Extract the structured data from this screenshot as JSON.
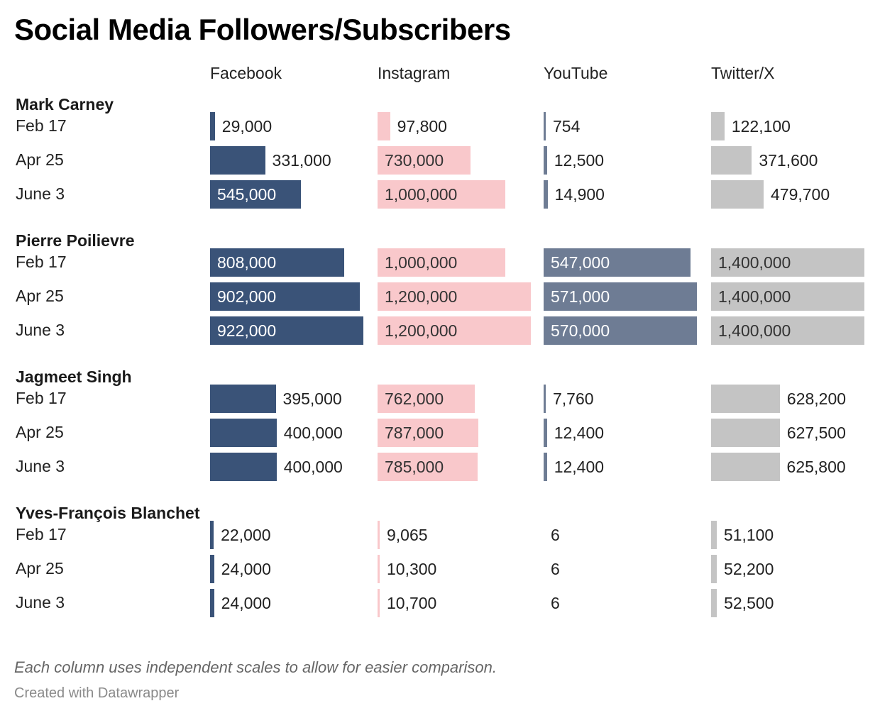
{
  "title": "Social Media Followers/Subscribers",
  "note": "Each column uses independent scales to allow for easier comparison.",
  "credit": "Created with Datawrapper",
  "chart_data": {
    "type": "bar",
    "title": "Social Media Followers/Subscribers",
    "columns": [
      {
        "name": "Facebook",
        "color": "#3a5378",
        "label_color_inside": "#ffffff",
        "max": 922000
      },
      {
        "name": "Instagram",
        "color": "#f9c8cb",
        "label_color_inside": "#333333",
        "max": 1200000
      },
      {
        "name": "YouTube",
        "color": "#6e7c94",
        "label_color_inside": "#ffffff",
        "max": 571000
      },
      {
        "name": "Twitter/X",
        "color": "#c4c4c4",
        "label_color_inside": "#333333",
        "max": 1400000
      }
    ],
    "groups": [
      {
        "name": "Mark Carney",
        "rows": [
          {
            "label": "Feb 17",
            "values": [
              29000,
              97800,
              754,
              122100
            ],
            "labels": [
              "29,000",
              "97,800",
              "754",
              "122,100"
            ]
          },
          {
            "label": "Apr 25",
            "values": [
              331000,
              730000,
              12500,
              371600
            ],
            "labels": [
              "331,000",
              "730,000",
              "12,500",
              "371,600"
            ]
          },
          {
            "label": "June 3",
            "values": [
              545000,
              1000000,
              14900,
              479700
            ],
            "labels": [
              "545,000",
              "1,000,000",
              "14,900",
              "479,700"
            ]
          }
        ]
      },
      {
        "name": "Pierre Poilievre",
        "rows": [
          {
            "label": "Feb 17",
            "values": [
              808000,
              1000000,
              547000,
              1400000
            ],
            "labels": [
              "808,000",
              "1,000,000",
              "547,000",
              "1,400,000"
            ]
          },
          {
            "label": "Apr 25",
            "values": [
              902000,
              1200000,
              571000,
              1400000
            ],
            "labels": [
              "902,000",
              "1,200,000",
              "571,000",
              "1,400,000"
            ]
          },
          {
            "label": "June 3",
            "values": [
              922000,
              1200000,
              570000,
              1400000
            ],
            "labels": [
              "922,000",
              "1,200,000",
              "570,000",
              "1,400,000"
            ]
          }
        ]
      },
      {
        "name": "Jagmeet Singh",
        "rows": [
          {
            "label": "Feb 17",
            "values": [
              395000,
              762000,
              7760,
              628200
            ],
            "labels": [
              "395,000",
              "762,000",
              "7,760",
              "628,200"
            ]
          },
          {
            "label": "Apr 25",
            "values": [
              400000,
              787000,
              12400,
              627500
            ],
            "labels": [
              "400,000",
              "787,000",
              "12,400",
              "627,500"
            ]
          },
          {
            "label": "June 3",
            "values": [
              400000,
              785000,
              12400,
              625800
            ],
            "labels": [
              "400,000",
              "785,000",
              "12,400",
              "625,800"
            ]
          }
        ]
      },
      {
        "name": "Yves-François Blanchet",
        "rows": [
          {
            "label": "Feb 17",
            "values": [
              22000,
              9065,
              6,
              51100
            ],
            "labels": [
              "22,000",
              "9,065",
              "6",
              "51,100"
            ]
          },
          {
            "label": "Apr 25",
            "values": [
              24000,
              10300,
              6,
              52200
            ],
            "labels": [
              "24,000",
              "10,300",
              "6",
              "52,200"
            ]
          },
          {
            "label": "June 3",
            "values": [
              24000,
              10700,
              6,
              52500
            ],
            "labels": [
              "24,000",
              "10,700",
              "6",
              "52,500"
            ]
          }
        ]
      }
    ]
  }
}
